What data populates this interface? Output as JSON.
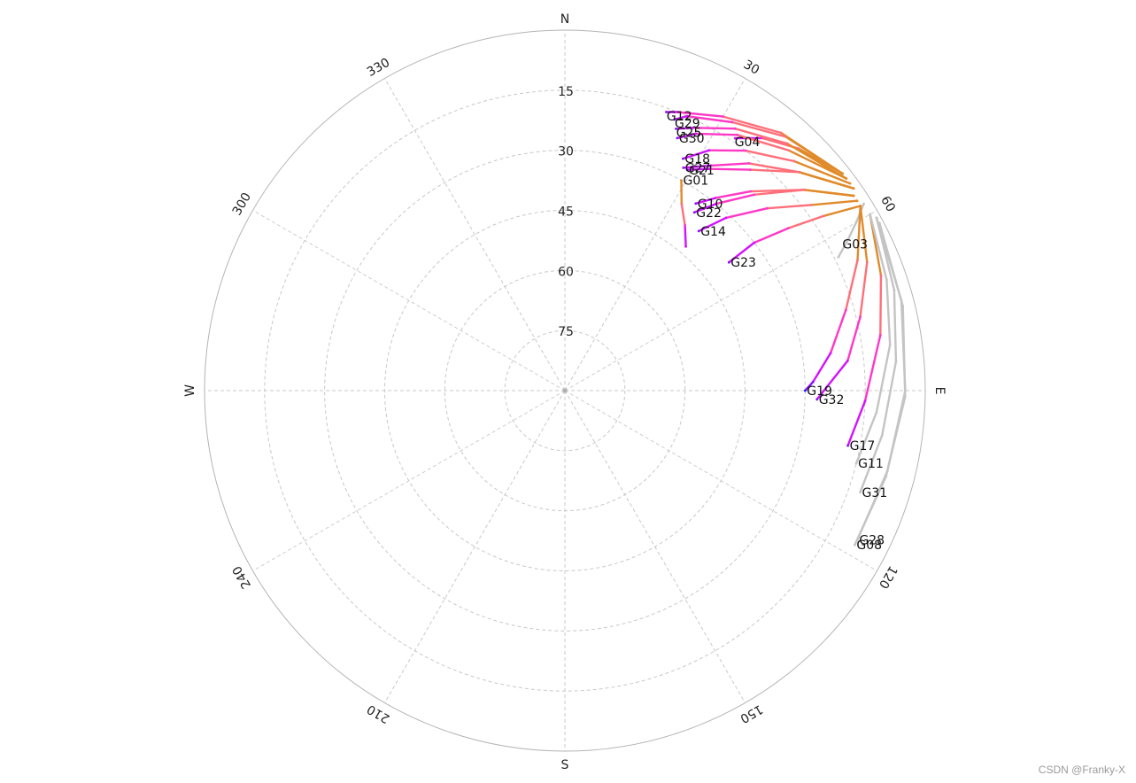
{
  "chart_data": {
    "type": "scatter",
    "subtype": "polar-skyplot",
    "title": "",
    "radial_axis": {
      "range": [
        0,
        90
      ],
      "ticks": [
        15,
        30,
        45,
        60,
        75
      ],
      "inverted": true,
      "grid": "dashed"
    },
    "angular_axis": {
      "ticks": [
        30,
        60,
        120,
        150,
        210,
        240,
        300,
        330
      ],
      "rotation": "clockwise",
      "zero": "north",
      "grid": "dashed"
    },
    "cardinal_labels": {
      "N": "N",
      "E": "E",
      "S": "S",
      "W": "W"
    },
    "colors": {
      "inactive": "#c4c4c4",
      "gradient": [
        "#2a17ff",
        "#8a10ff",
        "#d312ff",
        "#ff38c6",
        "#ff6f7a",
        "#e08a2a"
      ],
      "grid": "#c8c8c8",
      "outer_circle": "#b4b4b4"
    },
    "satellites": [
      {
        "prn": "G04",
        "label_az": 34,
        "label_el": 15,
        "active": true,
        "track": [
          [
            52,
            2
          ],
          [
            44,
            6
          ],
          [
            38,
            10
          ],
          [
            34,
            14
          ]
        ]
      },
      {
        "prn": "G12",
        "label_az": 20,
        "label_el": 17,
        "active": true,
        "track": [
          [
            52,
            2
          ],
          [
            40,
            6
          ],
          [
            30,
            11
          ],
          [
            22,
            15
          ],
          [
            20,
            16
          ]
        ]
      },
      {
        "prn": "G29",
        "label_az": 22,
        "label_el": 18,
        "active": true,
        "track": [
          [
            52,
            2
          ],
          [
            41,
            6
          ],
          [
            32,
            11
          ],
          [
            24,
            15
          ],
          [
            22,
            17
          ]
        ]
      },
      {
        "prn": "G25",
        "label_az": 23,
        "label_el": 20,
        "active": true,
        "track": [
          [
            53,
            2
          ],
          [
            42,
            7
          ],
          [
            33,
            12
          ],
          [
            26,
            17
          ],
          [
            23,
            19
          ]
        ]
      },
      {
        "prn": "G30",
        "label_az": 24,
        "label_el": 21,
        "active": true,
        "track": [
          [
            53,
            2
          ],
          [
            43,
            8
          ],
          [
            34,
            13
          ],
          [
            27,
            18
          ],
          [
            24,
            21
          ]
        ]
      },
      {
        "prn": "G18",
        "label_az": 27,
        "label_el": 25,
        "active": true,
        "track": [
          [
            54,
            2
          ],
          [
            45,
            9
          ],
          [
            37,
            15
          ],
          [
            31,
            20
          ],
          [
            27,
            25
          ]
        ]
      },
      {
        "prn": "G27",
        "label_az": 28,
        "label_el": 27,
        "active": true,
        "track": [
          [
            55,
            2
          ],
          [
            47,
            10
          ],
          [
            39,
            17
          ],
          [
            33,
            23
          ],
          [
            28,
            27
          ]
        ]
      },
      {
        "prn": "G21",
        "label_az": 29,
        "label_el": 27,
        "active": true,
        "track": [
          [
            55,
            2
          ],
          [
            47,
            10
          ],
          [
            40,
            18
          ],
          [
            33,
            24
          ],
          [
            29,
            27
          ]
        ]
      },
      {
        "prn": "G01",
        "label_az": 29,
        "label_el": 30,
        "active": true,
        "track": [
          [
            29,
            30
          ],
          [
            32,
            35
          ],
          [
            36,
            39
          ],
          [
            40,
            43
          ]
        ]
      },
      {
        "prn": "G10",
        "label_az": 35,
        "label_el": 33,
        "active": true,
        "track": [
          [
            56,
            3
          ],
          [
            50,
            12
          ],
          [
            43,
            22
          ],
          [
            38,
            29
          ],
          [
            35,
            33
          ]
        ]
      },
      {
        "prn": "G22",
        "label_az": 36,
        "label_el": 35,
        "active": true,
        "track": [
          [
            56,
            3
          ],
          [
            50,
            12
          ],
          [
            44,
            22
          ],
          [
            39,
            30
          ],
          [
            36,
            35
          ]
        ]
      },
      {
        "prn": "G14",
        "label_az": 40,
        "label_el": 38,
        "active": true,
        "track": [
          [
            57,
            3
          ],
          [
            53,
            13
          ],
          [
            48,
            22
          ],
          [
            43,
            31
          ],
          [
            40,
            38
          ]
        ]
      },
      {
        "prn": "G23",
        "label_az": 52,
        "label_el": 38,
        "active": true,
        "track": [
          [
            58,
            3
          ],
          [
            56,
            12
          ],
          [
            54,
            21
          ],
          [
            52,
            30
          ],
          [
            52,
            38
          ]
        ]
      },
      {
        "prn": "G03",
        "label_az": 62,
        "label_el": 12,
        "active": false,
        "track": [
          [
            58,
            2
          ],
          [
            60,
            6
          ],
          [
            62,
            10
          ],
          [
            64,
            14
          ]
        ]
      },
      {
        "prn": "G19",
        "label_az": 90,
        "label_el": 30,
        "active": true,
        "track": [
          [
            58,
            3
          ],
          [
            66,
            10
          ],
          [
            74,
            17
          ],
          [
            82,
            23
          ],
          [
            88,
            28
          ],
          [
            90,
            30
          ]
        ]
      },
      {
        "prn": "G32",
        "label_az": 92,
        "label_el": 27,
        "active": true,
        "track": [
          [
            58,
            3
          ],
          [
            67,
            8
          ],
          [
            76,
            14
          ],
          [
            84,
            19
          ],
          [
            92,
            27
          ]
        ]
      },
      {
        "prn": "G17",
        "label_az": 101,
        "label_el": 18,
        "active": true,
        "track": [
          [
            60,
            2
          ],
          [
            70,
            6
          ],
          [
            80,
            10
          ],
          [
            92,
            15
          ],
          [
            101,
            18
          ]
        ]
      },
      {
        "prn": "G11",
        "label_az": 104,
        "label_el": 15,
        "active": false,
        "track": [
          [
            60,
            2
          ],
          [
            71,
            5
          ],
          [
            82,
            8
          ],
          [
            94,
            12
          ],
          [
            104,
            15
          ]
        ]
      },
      {
        "prn": "G31",
        "label_az": 109,
        "label_el": 12,
        "active": false,
        "track": [
          [
            61,
            1
          ],
          [
            73,
            4
          ],
          [
            85,
            7
          ],
          [
            98,
            10
          ],
          [
            109,
            12
          ]
        ]
      },
      {
        "prn": "G28",
        "label_az": 117,
        "label_el": 8,
        "active": false,
        "track": [
          [
            61,
            1
          ],
          [
            75,
            3
          ],
          [
            90,
            5
          ],
          [
            104,
            7
          ],
          [
            117,
            8
          ]
        ]
      },
      {
        "prn": "G08",
        "label_az": 118,
        "label_el": 8,
        "active": false,
        "track": [
          [
            62,
            1
          ],
          [
            76,
            3
          ],
          [
            91,
            5
          ],
          [
            105,
            7
          ],
          [
            118,
            8
          ]
        ]
      }
    ]
  },
  "watermark": "CSDN @Franky-X"
}
